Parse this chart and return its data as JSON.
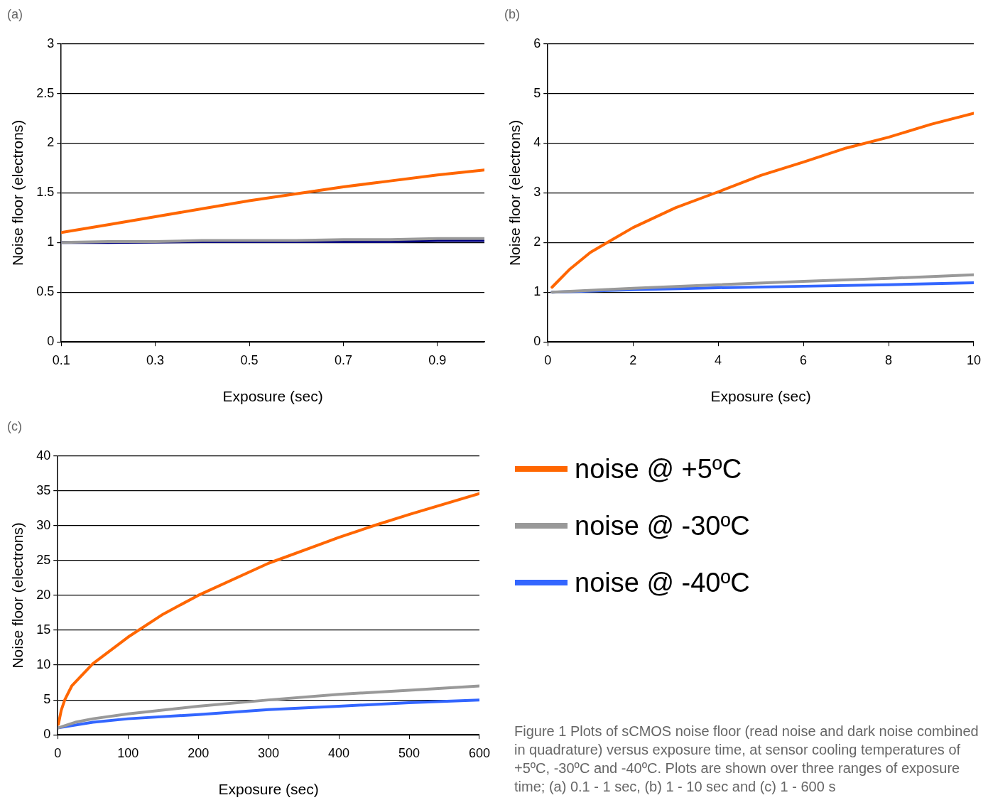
{
  "chart_data": [
    {
      "type": "line",
      "title": "(a)",
      "xlabel": "Exposure (sec)",
      "ylabel": "Noise floor (electrons)",
      "xlim": [
        0.1,
        1
      ],
      "xticks": [
        0.1,
        0.3,
        0.5,
        0.7,
        0.9
      ],
      "ylim": [
        0,
        3
      ],
      "yticks": [
        0,
        0.5,
        1,
        1.5,
        2,
        2.5,
        3
      ],
      "grid": "y",
      "line_style": "solid",
      "marker": "none",
      "x": [
        0.1,
        0.2,
        0.3,
        0.4,
        0.5,
        0.6,
        0.7,
        0.8,
        0.9,
        1.0
      ],
      "series": [
        {
          "color": "#ff6600",
          "values": [
            1.1,
            1.18,
            1.26,
            1.34,
            1.42,
            1.49,
            1.56,
            1.62,
            1.68,
            1.73
          ]
        },
        {
          "color": "#999999",
          "values": [
            1.0,
            1.01,
            1.01,
            1.02,
            1.02,
            1.02,
            1.03,
            1.03,
            1.04,
            1.04
          ]
        },
        {
          "color": "#000080",
          "values": [
            1.0,
            1.0,
            null,
            1.01,
            1.01,
            1.01,
            1.01,
            1.01,
            1.02,
            1.02
          ]
        }
      ]
    },
    {
      "type": "line",
      "title": "(b)",
      "xlabel": "Exposure (sec)",
      "ylabel": "Noise floor (electrons)",
      "xlim": [
        0,
        10
      ],
      "xticks": [
        0,
        2,
        4,
        6,
        8,
        10
      ],
      "ylim": [
        0,
        6
      ],
      "yticks": [
        0,
        1,
        2,
        3,
        4,
        5,
        6
      ],
      "grid": "y",
      "line_style": "solid",
      "marker": "none",
      "series": [
        {
          "color": "#ff6600",
          "x": [
            0.1,
            0.5,
            1,
            1.5,
            2,
            3,
            4,
            5,
            6,
            7,
            8,
            9,
            10
          ],
          "values": [
            1.1,
            1.45,
            1.8,
            2.05,
            2.3,
            2.7,
            3.02,
            3.35,
            3.62,
            3.9,
            4.12,
            4.38,
            4.6
          ]
        },
        {
          "color": "#999999",
          "x": [
            0.1,
            2,
            4,
            6,
            8,
            10
          ],
          "values": [
            1.0,
            1.08,
            1.15,
            1.22,
            1.28,
            1.35
          ]
        },
        {
          "color": "#3366ff",
          "x": [
            0.1,
            2,
            4,
            6,
            8,
            10
          ],
          "values": [
            1.0,
            1.05,
            1.09,
            1.12,
            1.15,
            1.19
          ]
        }
      ]
    },
    {
      "type": "line",
      "title": "(c)",
      "xlabel": "Exposure (sec)",
      "ylabel": "Noise floor (electrons)",
      "xlim": [
        0,
        600
      ],
      "xticks": [
        0,
        100,
        200,
        300,
        400,
        500,
        600
      ],
      "ylim": [
        0,
        40
      ],
      "yticks": [
        0,
        5,
        10,
        15,
        20,
        25,
        30,
        35,
        40
      ],
      "grid": "y",
      "line_style": "solid",
      "marker": "none",
      "legend": "right",
      "annotations": [
        "Figure 1  Plots of sCMOS noise floor (read noise and dark noise combined in quadrature) versus exposure time, at sensor cooling temperatures of +5ºC, -30ºC and -40ºC. Plots are shown over three ranges of exposure time; (a) 0.1 - 1 sec, (b) 1 - 10 sec and (c) 1 - 600 s"
      ],
      "series": [
        {
          "name": "noise @ +5ºC",
          "color": "#ff6600",
          "x": [
            1,
            5,
            10,
            20,
            50,
            100,
            150,
            200,
            300,
            400,
            450,
            500,
            600
          ],
          "values": [
            1.5,
            3.5,
            5,
            7,
            10.2,
            14,
            17.3,
            20,
            24.6,
            28.3,
            30,
            31.6,
            34.6
          ]
        },
        {
          "name": "noise @ -30ºC",
          "color": "#999999",
          "x": [
            1,
            25,
            50,
            100,
            200,
            300,
            400,
            500,
            600
          ],
          "values": [
            1,
            1.8,
            2.3,
            3,
            4.1,
            5,
            5.8,
            6.4,
            7
          ]
        },
        {
          "name": "noise @ -40ºC",
          "color": "#3366ff",
          "x": [
            1,
            50,
            100,
            200,
            300,
            400,
            500,
            600
          ],
          "values": [
            1,
            1.8,
            2.3,
            2.9,
            3.6,
            4.1,
            4.6,
            5
          ]
        }
      ]
    }
  ]
}
